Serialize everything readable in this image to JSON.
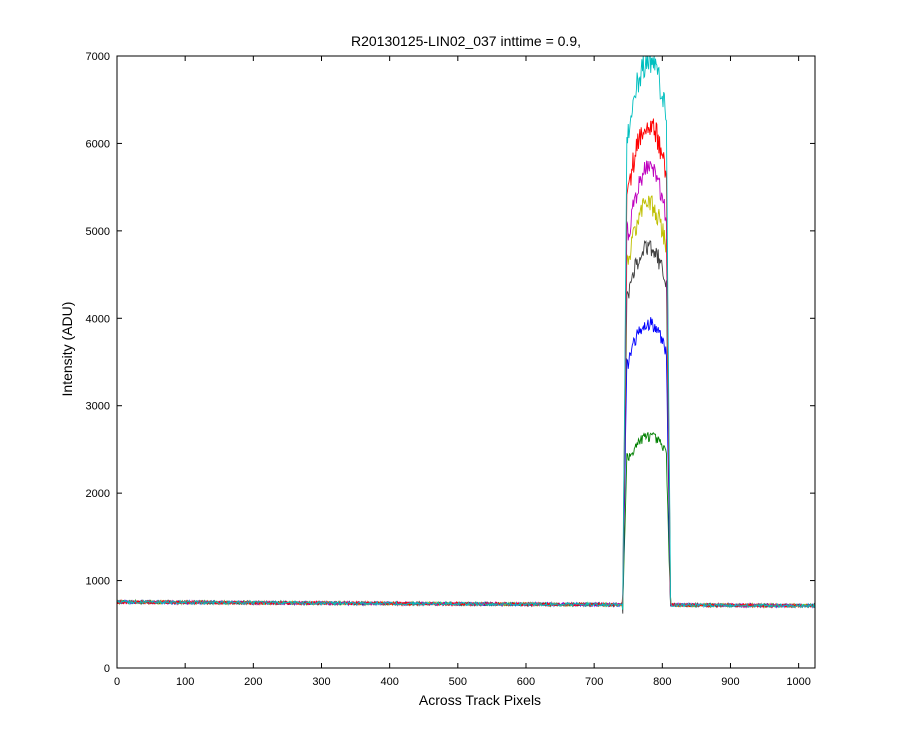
{
  "chart_data": {
    "type": "line",
    "title": "R20130125-LIN02_037 inttime = 0.9,",
    "xlabel": "Across Track Pixels",
    "ylabel": "Intensity (ADU)",
    "xlim": [
      0,
      1024
    ],
    "ylim": [
      0,
      7000
    ],
    "xticks": [
      0,
      100,
      200,
      300,
      400,
      500,
      600,
      700,
      800,
      900,
      1000
    ],
    "yticks": [
      0,
      1000,
      2000,
      3000,
      4000,
      5000,
      6000,
      7000
    ],
    "grid": false,
    "legend": "none",
    "profile": {
      "rise_start": 742,
      "rise_end": 748,
      "fall_start": 806,
      "fall_end": 812,
      "center": 780,
      "baseline_left": 755,
      "baseline_right": 712
    },
    "series": [
      {
        "color": "#008000",
        "peak": 2650,
        "edge": 2400
      },
      {
        "color": "#0000ff",
        "peak": 3950,
        "edge": 3500
      },
      {
        "color": "#404040",
        "peak": 4800,
        "edge": 4300
      },
      {
        "color": "#bfbf00",
        "peak": 5300,
        "edge": 4700
      },
      {
        "color": "#bf00bf",
        "peak": 5700,
        "edge": 5000
      },
      {
        "color": "#ff0000",
        "peak": 6200,
        "edge": 5500
      },
      {
        "color": "#00bfbf",
        "peak": 6950,
        "edge": 6100
      }
    ]
  }
}
